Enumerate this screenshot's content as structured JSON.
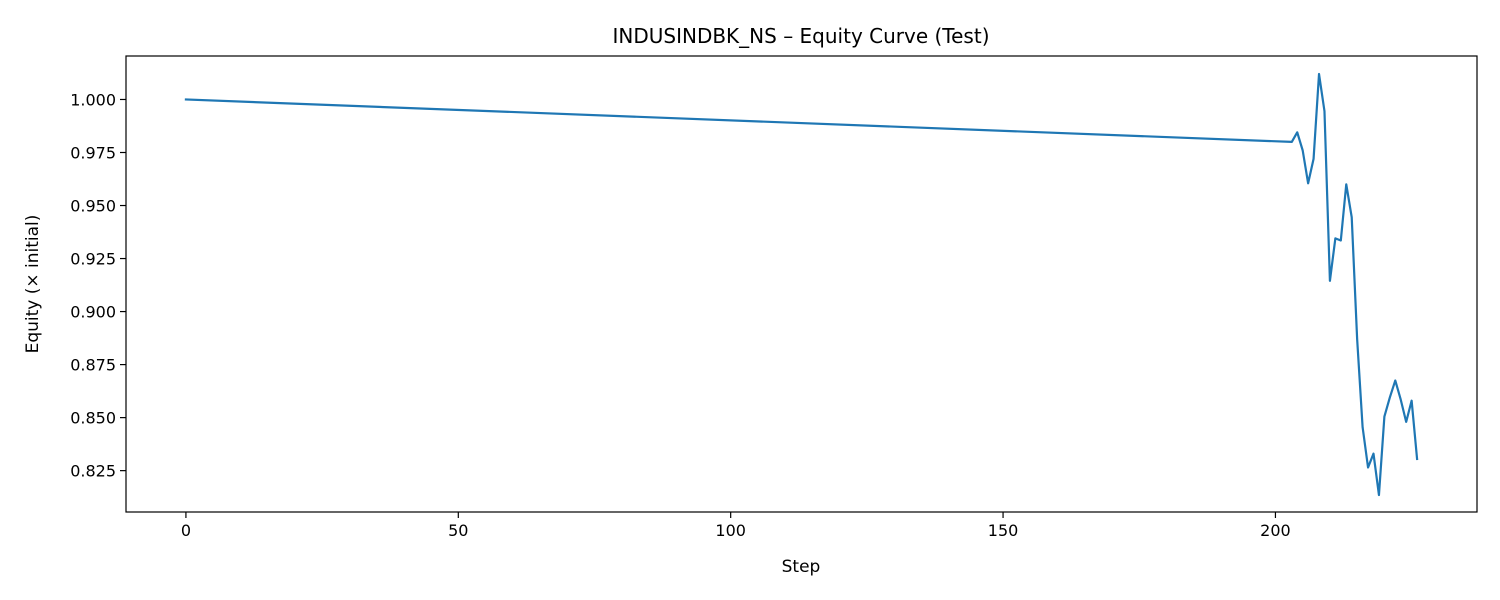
{
  "chart_data": {
    "type": "line",
    "title": "INDUSINDBK_NS – Equity Curve (Test)",
    "xlabel": "Step",
    "ylabel": "Equity (× initial)",
    "xlim": [
      -11,
      237
    ],
    "ylim": [
      0.8055,
      1.0205
    ],
    "x_ticks": [
      0,
      50,
      100,
      150,
      200
    ],
    "x_tick_labels": [
      "0",
      "50",
      "100",
      "150",
      "200"
    ],
    "y_ticks": [
      0.825,
      0.85,
      0.875,
      0.9,
      0.925,
      0.95,
      0.975,
      1.0
    ],
    "y_tick_labels": [
      "0.825",
      "0.850",
      "0.875",
      "0.900",
      "0.925",
      "0.950",
      "0.975",
      "1.000"
    ],
    "grid": false,
    "legend": "none",
    "series": [
      {
        "color": "#1f77b4",
        "x": [
          0,
          203,
          204,
          205,
          206,
          207,
          208,
          209,
          210,
          211,
          212,
          213,
          214,
          215,
          216,
          217,
          218,
          219,
          220,
          221,
          222,
          223,
          224,
          225,
          226
        ],
        "y": [
          1.0,
          0.98,
          0.9845,
          0.976,
          0.9605,
          0.972,
          1.012,
          0.9945,
          0.9145,
          0.9345,
          0.9335,
          0.96,
          0.9445,
          0.887,
          0.8455,
          0.8265,
          0.833,
          0.8135,
          0.8505,
          0.8595,
          0.8675,
          0.8585,
          0.848,
          0.858,
          0.8305
        ]
      }
    ]
  }
}
